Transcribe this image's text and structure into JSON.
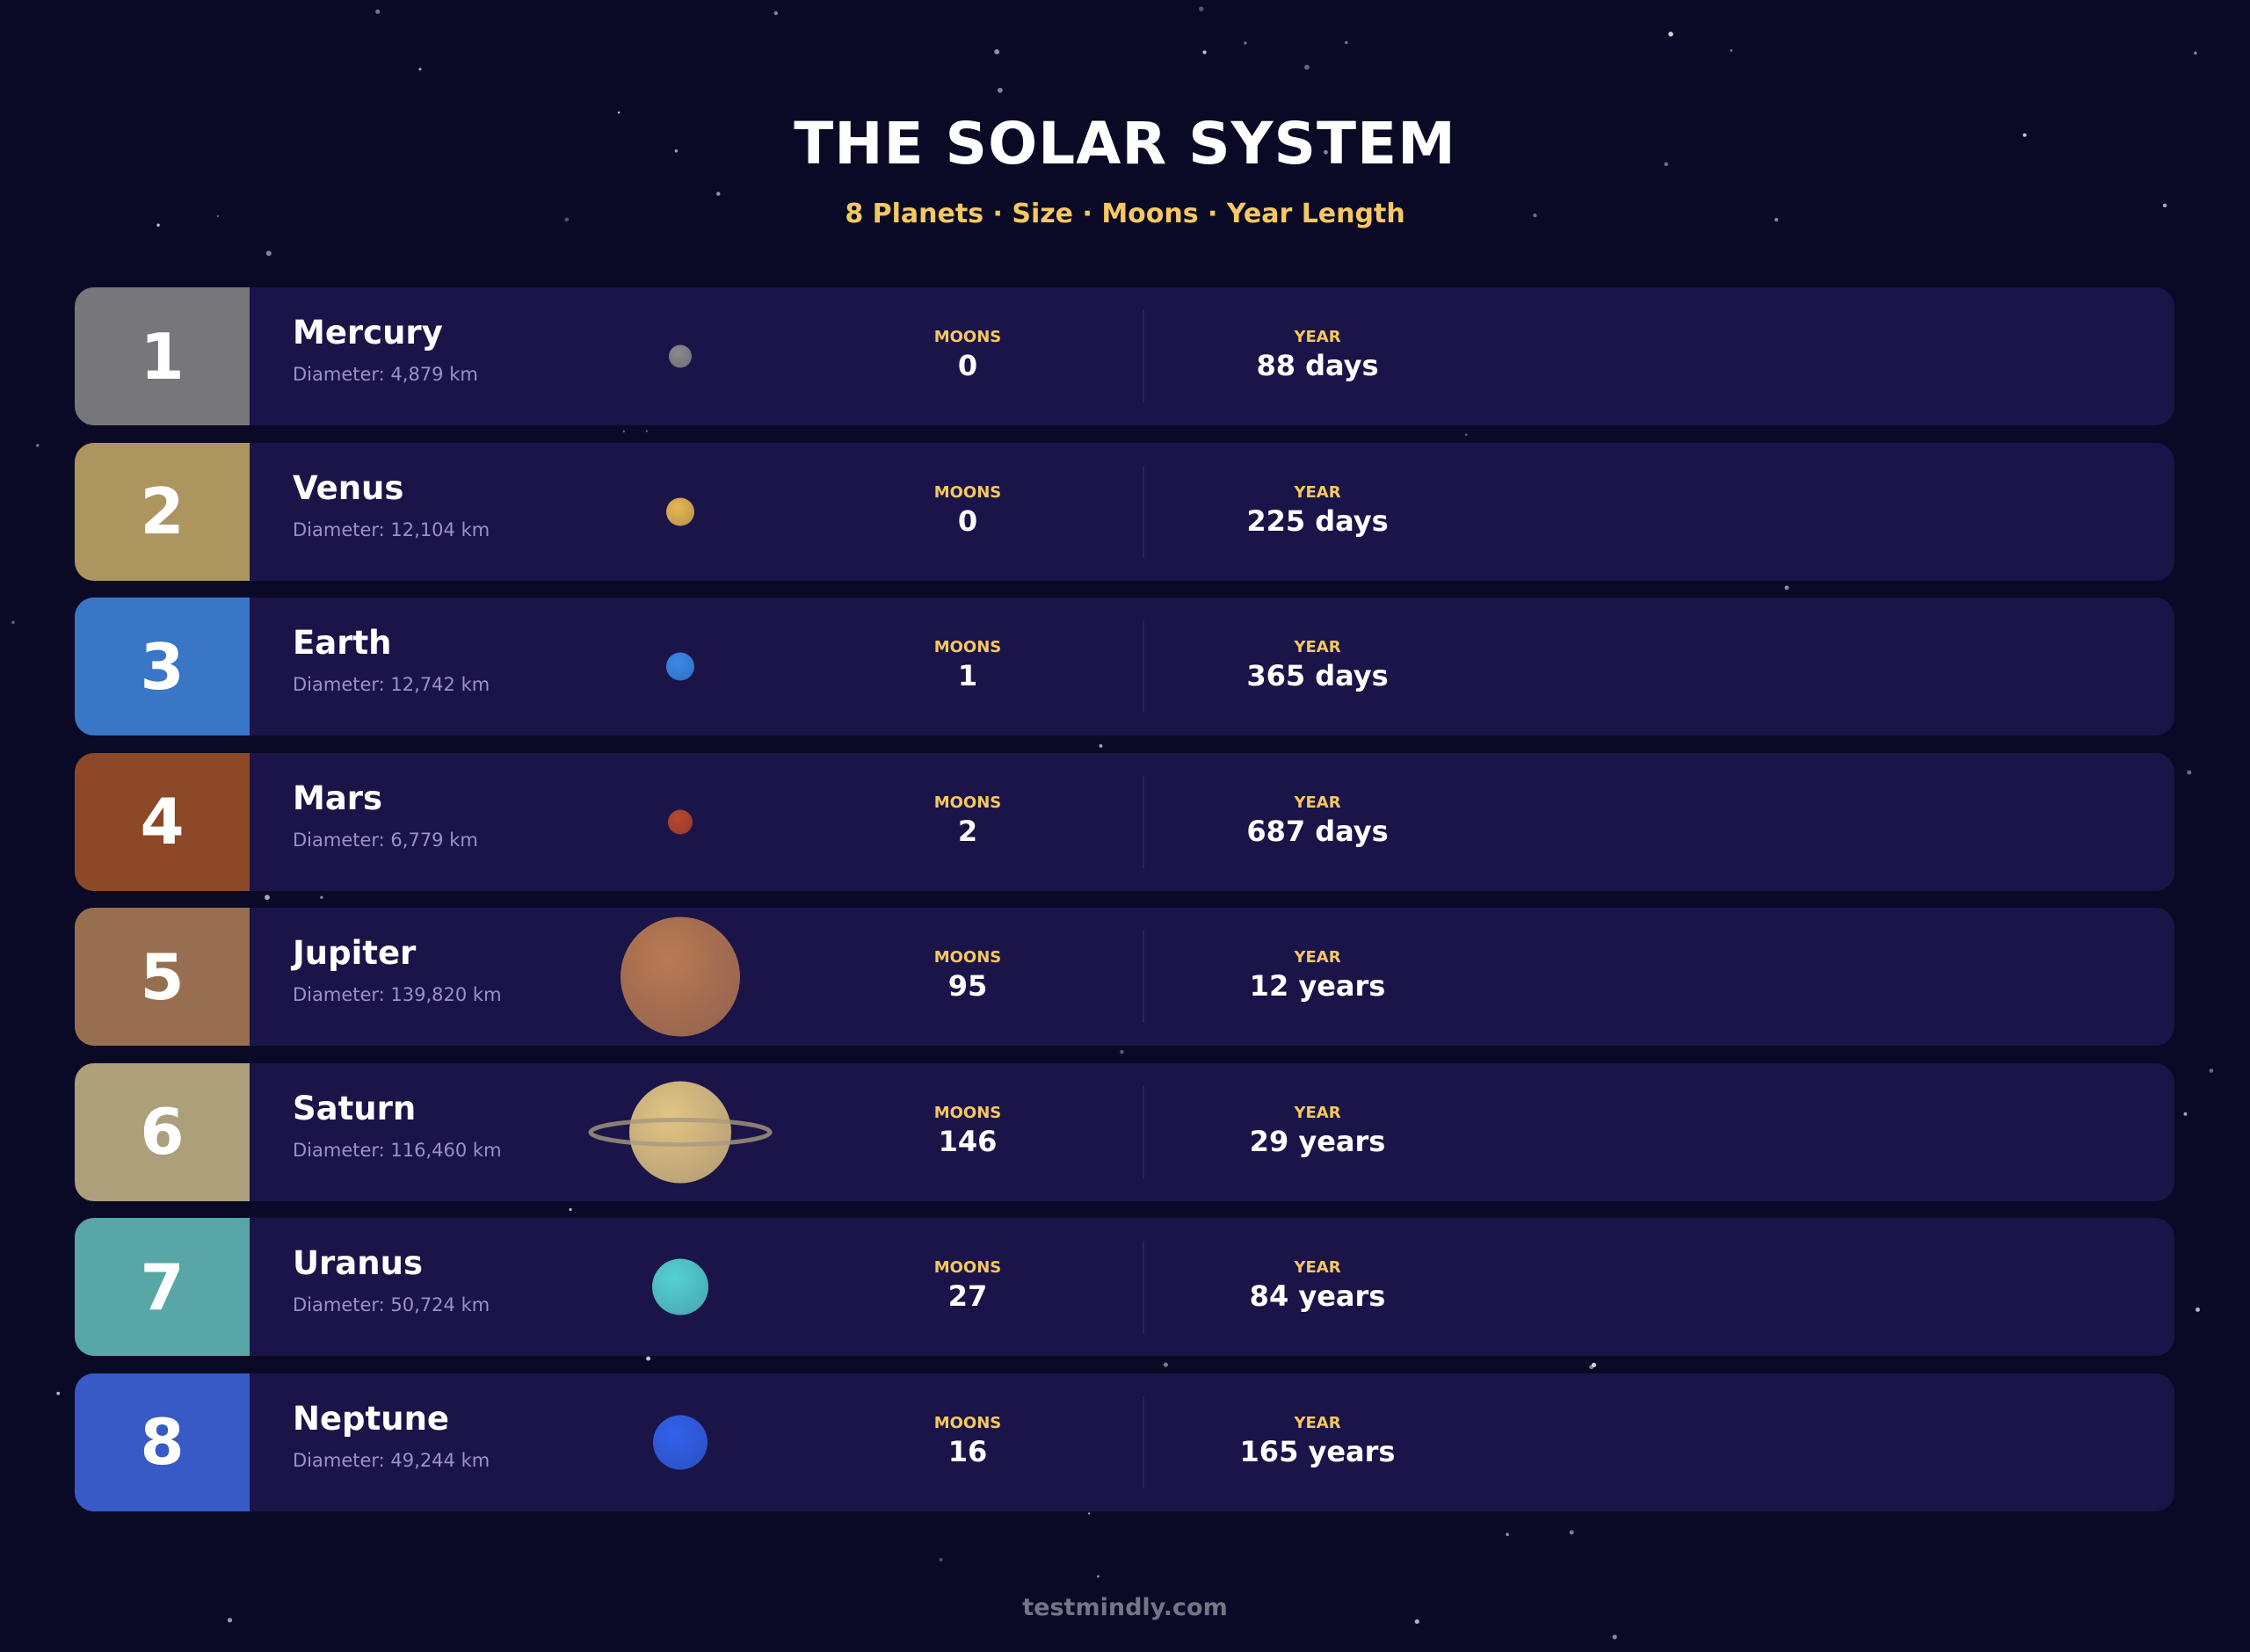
{
  "header": {
    "title": "THE SOLAR SYSTEM",
    "subtitle": "8 Planets · Size · Moons · Year Length"
  },
  "labels": {
    "moons": "MOONS",
    "year": "YEAR"
  },
  "planets": [
    {
      "number": "1",
      "name": "Mercury",
      "diameter": "Diameter: 4,879 km",
      "moons": "0",
      "year": "88 days",
      "box_color": "#77777b",
      "planet_color": "#8a8a8a"
    },
    {
      "number": "2",
      "name": "Venus",
      "diameter": "Diameter: 12,104 km",
      "moons": "0",
      "year": "225 days",
      "box_color": "#ad955f",
      "planet_color": "#e8b850"
    },
    {
      "number": "3",
      "name": "Earth",
      "diameter": "Diameter: 12,742 km",
      "moons": "1",
      "year": "365 days",
      "box_color": "#3a76c6",
      "planet_color": "#3a8ae8"
    },
    {
      "number": "4",
      "name": "Mars",
      "diameter": "Diameter: 6,779 km",
      "moons": "2",
      "year": "687 days",
      "box_color": "#8c4827",
      "planet_color": "#b8482a"
    },
    {
      "number": "5",
      "name": "Jupiter",
      "diameter": "Diameter: 139,820 km",
      "moons": "95",
      "year": "12 years",
      "box_color": "#976f50",
      "planet_color": "#b87a52"
    },
    {
      "number": "6",
      "name": "Saturn",
      "diameter": "Diameter: 116,460 km",
      "moons": "146",
      "year": "29 years",
      "box_color": "#ae9f7b",
      "planet_color": "#e2c582",
      "rings": true
    },
    {
      "number": "7",
      "name": "Uranus",
      "diameter": "Diameter: 50,724 km",
      "moons": "27",
      "year": "84 years",
      "box_color": "#58a6a6",
      "planet_color": "#55d2d2"
    },
    {
      "number": "8",
      "name": "Neptune",
      "diameter": "Diameter: 49,244 km",
      "moons": "16",
      "year": "165 years",
      "box_color": "#385ac6",
      "planet_color": "#3262ea"
    }
  ],
  "footer": "testmindly.com"
}
